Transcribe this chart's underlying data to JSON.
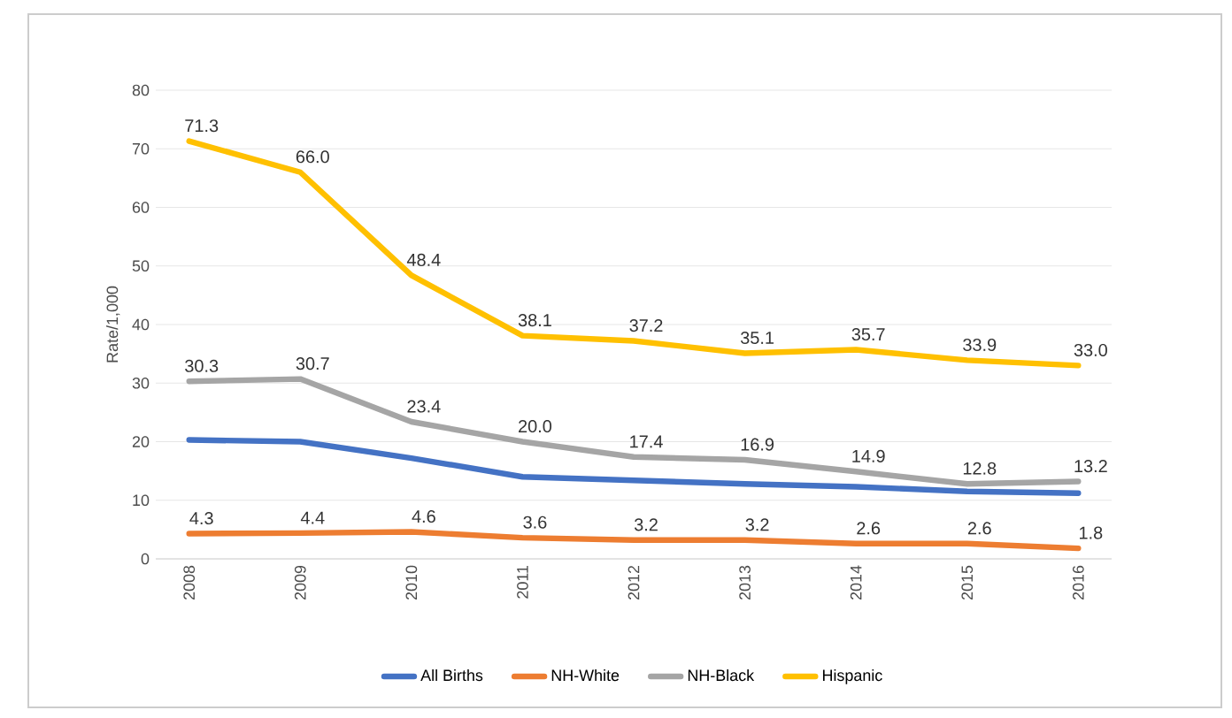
{
  "chart_data": {
    "type": "line",
    "ylabel": "Rate/1,000",
    "categories": [
      "2008",
      "2009",
      "2010",
      "2011",
      "2012",
      "2013",
      "2014",
      "2015",
      "2016"
    ],
    "series": [
      {
        "name": "All Births",
        "color": "#4472c4",
        "values": [
          20.3,
          20.0,
          17.2,
          14.0,
          13.4,
          12.8,
          12.3,
          11.5,
          11.2
        ]
      },
      {
        "name": "NH-White",
        "color": "#ed7d31",
        "values": [
          4.3,
          4.4,
          4.6,
          3.6,
          3.2,
          3.2,
          2.6,
          2.6,
          1.8
        ],
        "value_labels": [
          "4.3",
          "4.4",
          "4.6",
          "3.6",
          "3.2",
          "3.2",
          "2.6",
          "2.6",
          "1.8"
        ]
      },
      {
        "name": "NH-Black",
        "color": "#a5a5a5",
        "values": [
          30.3,
          30.7,
          23.4,
          20.0,
          17.4,
          16.9,
          14.9,
          12.8,
          13.2
        ],
        "value_labels": [
          "30.3",
          "30.7",
          "23.4",
          "20.0",
          "17.4",
          "16.9",
          "14.9",
          "12.8",
          "13.2"
        ]
      },
      {
        "name": "Hispanic",
        "color": "#ffc000",
        "values": [
          71.3,
          66.0,
          48.4,
          38.1,
          37.2,
          35.1,
          35.7,
          33.9,
          33.0
        ],
        "value_labels": [
          "71.3",
          "66.0",
          "48.4",
          "38.1",
          "37.2",
          "35.1",
          "35.7",
          "33.9",
          "33.0"
        ]
      }
    ],
    "ylim": [
      0,
      80
    ],
    "yticks": [
      0,
      10,
      20,
      30,
      40,
      50,
      60,
      70,
      80
    ],
    "grid": "y",
    "legend": "bottom",
    "marker": "none",
    "line_style": "solid"
  }
}
